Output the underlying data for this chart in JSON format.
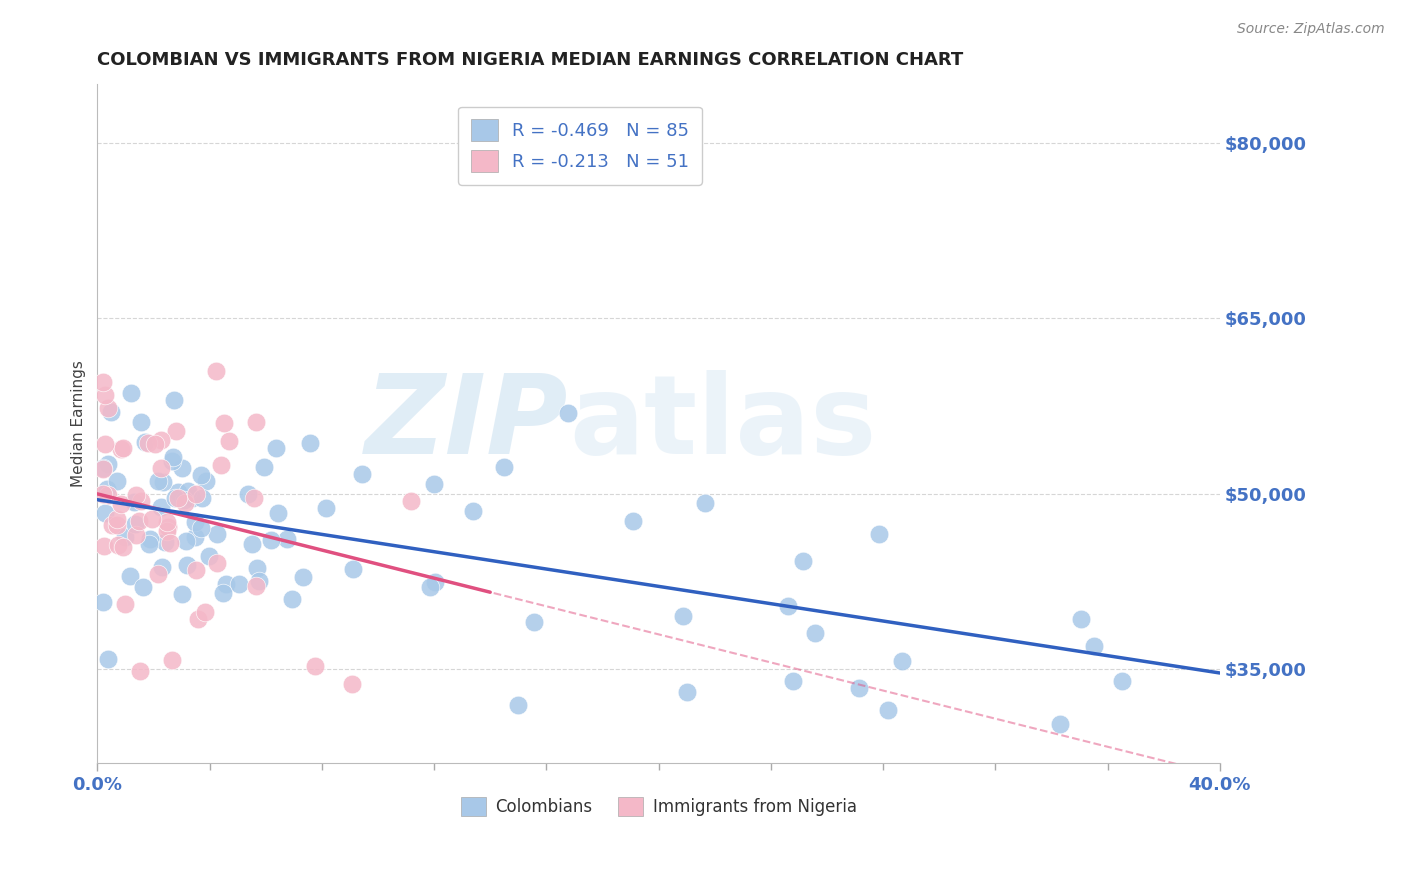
{
  "title": "COLOMBIAN VS IMMIGRANTS FROM NIGERIA MEDIAN EARNINGS CORRELATION CHART",
  "source": "Source: ZipAtlas.com",
  "ylabel": "Median Earnings",
  "y_ticks": [
    35000,
    50000,
    65000,
    80000
  ],
  "y_tick_labels": [
    "$35,000",
    "$50,000",
    "$65,000",
    "$80,000"
  ],
  "xlim": [
    0.0,
    40.0
  ],
  "ylim": [
    27000,
    85000
  ],
  "legend_r1": "R = -0.469",
  "legend_n1": "N = 85",
  "legend_r2": "R = -0.213",
  "legend_n2": "N = 51",
  "color_colombians": "#a8c8e8",
  "color_nigeria": "#f4b8c8",
  "color_line_colombians": "#3060c0",
  "color_line_nigeria": "#e05080",
  "color_axis_labels": "#4472C4",
  "background_color": "#ffffff",
  "grid_color": "#cccccc",
  "col_slope": -370,
  "col_intercept": 49500,
  "nig_slope": -600,
  "nig_intercept": 50000,
  "nig_dash_slope": -370,
  "nig_dash_intercept": 48000
}
